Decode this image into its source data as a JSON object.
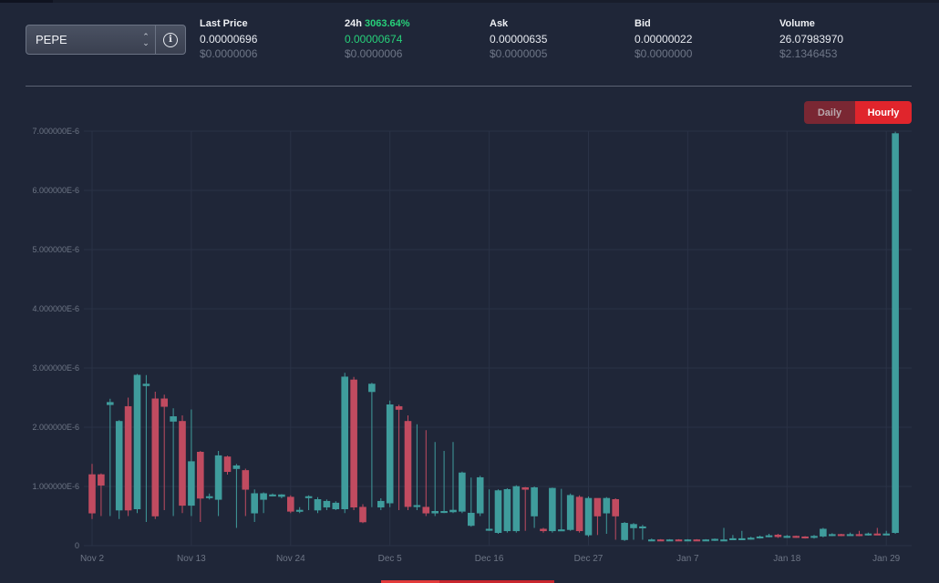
{
  "selector": {
    "value": "PEPE",
    "info_icon": "info-circle-icon"
  },
  "stats": {
    "last_price": {
      "label": "Last Price",
      "value": "0.00000696",
      "usd": "$0.0000006"
    },
    "change_24h": {
      "label": "24h",
      "percent": "3063.64%",
      "value": "0.00000674",
      "usd": "$0.0000006"
    },
    "ask": {
      "label": "Ask",
      "value": "0.00000635",
      "usd": "$0.0000005"
    },
    "bid": {
      "label": "Bid",
      "value": "0.00000022",
      "usd": "$0.0000000"
    },
    "volume": {
      "label": "Volume",
      "value": "26.07983970",
      "usd": "$2.1346453"
    }
  },
  "toggle": {
    "daily_label": "Daily",
    "hourly_label": "Hourly",
    "active": "Hourly"
  },
  "colors": {
    "up": "#3f9c9c",
    "down": "#c04b60",
    "grid": "#2a3246",
    "axis_text": "#6d7585",
    "background": "#1f2638"
  },
  "chart_data": {
    "type": "candlestick",
    "unit": "1E-6",
    "ylim": [
      0,
      7
    ],
    "yticks": [
      {
        "value": 0,
        "label": "0"
      },
      {
        "value": 1,
        "label": "1.000000E-6"
      },
      {
        "value": 2,
        "label": "2.000000E-6"
      },
      {
        "value": 3,
        "label": "3.000000E-6"
      },
      {
        "value": 4,
        "label": "4.000000E-6"
      },
      {
        "value": 5,
        "label": "5.000000E-6"
      },
      {
        "value": 6,
        "label": "6.000000E-6"
      },
      {
        "value": 7,
        "label": "7.000000E-6"
      }
    ],
    "xlim": [
      0,
      89.5
    ],
    "xticks": [
      {
        "label": "Nov 2",
        "day": 0
      },
      {
        "label": "Nov 13",
        "day": 11
      },
      {
        "label": "Nov 24",
        "day": 22
      },
      {
        "label": "Dec 5",
        "day": 33
      },
      {
        "label": "Dec 16",
        "day": 44
      },
      {
        "label": "Dec 27",
        "day": 55
      },
      {
        "label": "Jan 7",
        "day": 66
      },
      {
        "label": "Jan 18",
        "day": 77
      },
      {
        "label": "Jan 29",
        "day": 88
      }
    ],
    "candles": [
      [
        1.2,
        0.55,
        1.38,
        0.45
      ],
      [
        1.2,
        1.02,
        1.22,
        0.5
      ],
      [
        2.38,
        2.42,
        2.48,
        0.5
      ],
      [
        0.6,
        2.1,
        2.12,
        0.45
      ],
      [
        2.35,
        0.6,
        2.5,
        0.5
      ],
      [
        0.62,
        2.88,
        2.9,
        0.55
      ],
      [
        2.7,
        2.73,
        2.88,
        0.4
      ],
      [
        2.48,
        0.5,
        2.6,
        0.45
      ],
      [
        2.48,
        2.35,
        2.55,
        0.6
      ],
      [
        2.1,
        2.18,
        2.32,
        0.5
      ],
      [
        2.1,
        0.68,
        2.2,
        0.55
      ],
      [
        0.68,
        1.42,
        2.3,
        0.5
      ],
      [
        1.58,
        0.8,
        1.6,
        0.4
      ],
      [
        0.82,
        0.83,
        0.88,
        0.78
      ],
      [
        0.78,
        1.52,
        1.6,
        0.5
      ],
      [
        1.5,
        1.25,
        1.52,
        1.2
      ],
      [
        1.3,
        1.35,
        1.38,
        0.3
      ],
      [
        1.27,
        0.95,
        1.3,
        0.5
      ],
      [
        0.55,
        0.88,
        0.95,
        0.4
      ],
      [
        0.78,
        0.88,
        0.9,
        0.55
      ],
      [
        0.85,
        0.86,
        0.88,
        0.83
      ],
      [
        0.83,
        0.86,
        0.87,
        0.8
      ],
      [
        0.82,
        0.58,
        0.85,
        0.55
      ],
      [
        0.58,
        0.6,
        0.65,
        0.55
      ],
      [
        0.82,
        0.83,
        0.85,
        0.6
      ],
      [
        0.6,
        0.78,
        0.82,
        0.55
      ],
      [
        0.65,
        0.75,
        0.78,
        0.6
      ],
      [
        0.62,
        0.72,
        0.75,
        0.6
      ],
      [
        0.62,
        2.85,
        2.92,
        0.55
      ],
      [
        2.8,
        0.65,
        2.85,
        0.6
      ],
      [
        0.65,
        0.4,
        0.7,
        0.38
      ],
      [
        2.6,
        2.73,
        2.75,
        0.65
      ],
      [
        0.65,
        0.75,
        0.8,
        0.6
      ],
      [
        0.72,
        2.38,
        2.45,
        0.65
      ],
      [
        2.35,
        2.3,
        2.38,
        0.6
      ],
      [
        2.1,
        0.66,
        2.2,
        0.6
      ],
      [
        0.66,
        0.68,
        2.05,
        0.6
      ],
      [
        0.65,
        0.55,
        1.95,
        0.5
      ],
      [
        0.55,
        0.58,
        1.75,
        0.5
      ],
      [
        0.57,
        0.58,
        1.6,
        0.55
      ],
      [
        0.57,
        0.6,
        1.75,
        0.55
      ],
      [
        0.58,
        1.23,
        1.25,
        0.55
      ],
      [
        0.34,
        0.55,
        1.15,
        0.32
      ],
      [
        0.55,
        1.15,
        1.18,
        0.5
      ],
      [
        0.28,
        0.28,
        0.95,
        0.25
      ],
      [
        0.22,
        0.93,
        0.95,
        0.2
      ],
      [
        0.25,
        0.95,
        0.97,
        0.22
      ],
      [
        0.25,
        1.0,
        1.02,
        0.22
      ],
      [
        0.98,
        0.95,
        0.99,
        0.25
      ],
      [
        0.5,
        0.98,
        1.0,
        0.3
      ],
      [
        0.28,
        0.25,
        0.3,
        0.22
      ],
      [
        0.25,
        0.97,
        0.98,
        0.22
      ],
      [
        0.27,
        0.27,
        0.96,
        0.25
      ],
      [
        0.27,
        0.85,
        0.88,
        0.25
      ],
      [
        0.82,
        0.25,
        0.85,
        0.22
      ],
      [
        0.18,
        0.8,
        0.83,
        0.15
      ],
      [
        0.8,
        0.5,
        0.8,
        0.18
      ],
      [
        0.55,
        0.8,
        0.82,
        0.2
      ],
      [
        0.78,
        0.5,
        0.8,
        0.1
      ],
      [
        0.1,
        0.38,
        0.4,
        0.08
      ],
      [
        0.3,
        0.36,
        0.38,
        0.1
      ],
      [
        0.3,
        0.32,
        0.35,
        0.1
      ],
      [
        0.1,
        0.1,
        0.12,
        0.08
      ],
      [
        0.1,
        0.09,
        0.11,
        0.08
      ],
      [
        0.09,
        0.1,
        0.11,
        0.08
      ],
      [
        0.1,
        0.09,
        0.11,
        0.08
      ],
      [
        0.09,
        0.1,
        0.11,
        0.08
      ],
      [
        0.1,
        0.09,
        0.11,
        0.08
      ],
      [
        0.09,
        0.1,
        0.11,
        0.08
      ],
      [
        0.1,
        0.11,
        0.12,
        0.08
      ],
      [
        0.1,
        0.1,
        0.3,
        0.08
      ],
      [
        0.11,
        0.12,
        0.18,
        0.1
      ],
      [
        0.12,
        0.12,
        0.25,
        0.1
      ],
      [
        0.12,
        0.13,
        0.15,
        0.1
      ],
      [
        0.13,
        0.15,
        0.17,
        0.12
      ],
      [
        0.15,
        0.17,
        0.2,
        0.14
      ],
      [
        0.18,
        0.15,
        0.2,
        0.13
      ],
      [
        0.15,
        0.16,
        0.18,
        0.13
      ],
      [
        0.16,
        0.15,
        0.17,
        0.13
      ],
      [
        0.15,
        0.14,
        0.16,
        0.12
      ],
      [
        0.14,
        0.16,
        0.18,
        0.12
      ],
      [
        0.16,
        0.28,
        0.3,
        0.14
      ],
      [
        0.18,
        0.19,
        0.21,
        0.16
      ],
      [
        0.19,
        0.18,
        0.2,
        0.16
      ],
      [
        0.18,
        0.19,
        0.22,
        0.17
      ],
      [
        0.19,
        0.18,
        0.25,
        0.16
      ],
      [
        0.18,
        0.2,
        0.22,
        0.17
      ],
      [
        0.2,
        0.19,
        0.3,
        0.18
      ],
      [
        0.19,
        0.2,
        0.25,
        0.18
      ],
      [
        0.22,
        6.96,
        6.99,
        0.2
      ]
    ]
  }
}
